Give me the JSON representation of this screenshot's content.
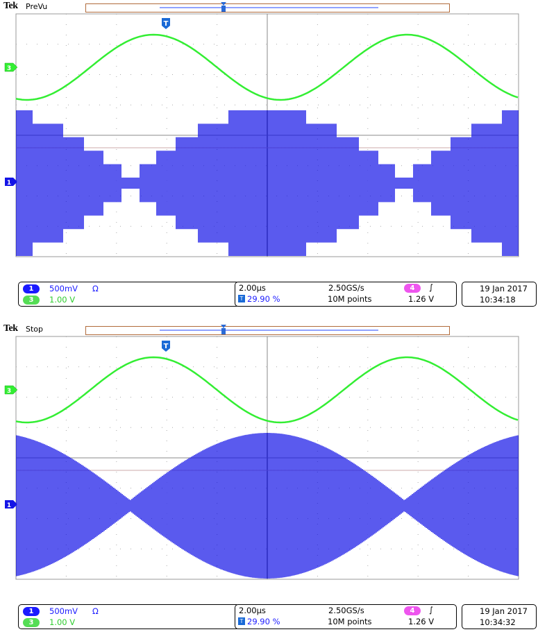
{
  "screens": [
    {
      "brand": "Tek",
      "state": "PreVu",
      "trigger_marker": "T",
      "ch3_marker": "3",
      "ch1_marker": "1",
      "ch1": {
        "label": "1",
        "scale": "500mV",
        "coupling": "Ω",
        "color": "#1414e6"
      },
      "ch3": {
        "label": "3",
        "scale": "1.00 V",
        "color": "#33ee33"
      },
      "timebase": "2.00µs",
      "trigger_pos": "29.90 %",
      "sample_rate": "2.50GS/s",
      "record_length": "10M points",
      "trig_source": "4",
      "trig_slope": "∫",
      "trig_level": "1.26 V",
      "date": "19 Jan  2017",
      "time": "10:34:18"
    },
    {
      "brand": "Tek",
      "state": "Stop",
      "trigger_marker": "T",
      "ch3_marker": "3",
      "ch1_marker": "1",
      "ch1": {
        "label": "1",
        "scale": "500mV",
        "coupling": "Ω",
        "color": "#1414e6"
      },
      "ch3": {
        "label": "3",
        "scale": "1.00 V",
        "color": "#33ee33"
      },
      "timebase": "2.00µs",
      "trigger_pos": "29.90 %",
      "sample_rate": "2.50GS/s",
      "record_length": "10M points",
      "trig_source": "4",
      "trig_slope": "∫",
      "trig_level": "1.26 V",
      "date": "19 Jan  2017",
      "time": "10:34:32"
    }
  ]
}
